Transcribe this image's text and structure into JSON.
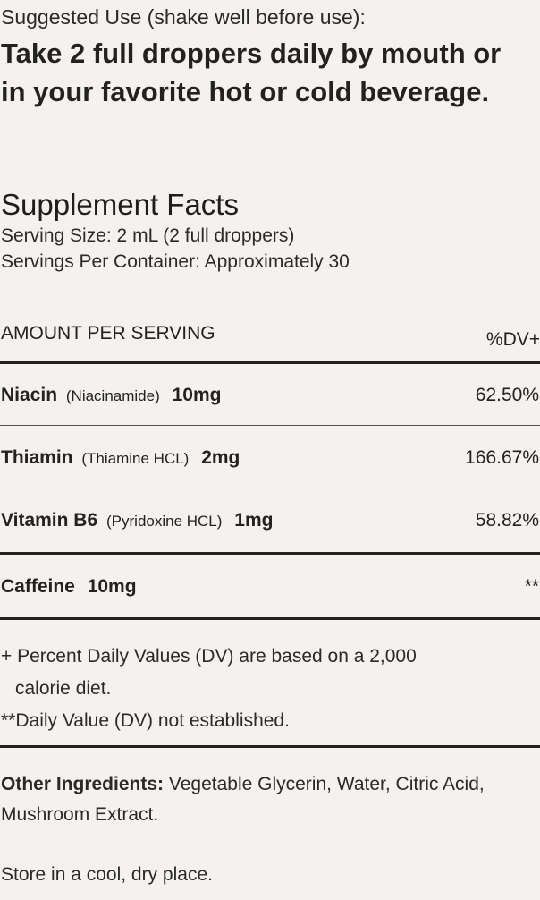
{
  "suggested_use": {
    "label": "Suggested Use (shake well before use):",
    "instruction": "Take 2 full droppers daily by mouth or in your favorite hot or cold beverage."
  },
  "supplement_facts": {
    "title": "Supplement Facts",
    "serving_size": "Serving Size: 2 mL (2 full droppers)",
    "servings_per_container": "Servings Per Container: Approximately 30",
    "header_left": "AMOUNT PER SERVING",
    "header_right": "%DV+",
    "rows": [
      {
        "name": "Niacin",
        "source": "(Niacinamide)",
        "amount": "10mg",
        "dv": "62.50%"
      },
      {
        "name": "Thiamin",
        "source": "(Thiamine HCL)",
        "amount": "2mg",
        "dv": "166.67%"
      },
      {
        "name": "Vitamin B6",
        "source": "(Pyridoxine HCL)",
        "amount": "1mg",
        "dv": "58.82%"
      },
      {
        "name": "Caffeine",
        "source": "",
        "amount": "10mg",
        "dv": "**"
      }
    ],
    "footnote_dv_line1": "+ Percent Daily Values (DV) are based on a 2,000",
    "footnote_dv_line2": "calorie diet.",
    "footnote_not_established": "**Daily Value (DV) not established."
  },
  "other_ingredients": {
    "label": "Other Ingredients:",
    "text": " Vegetable Glycerin, Water, Citric Acid, Mushroom Extract."
  },
  "storage": "Store in a cool, dry place."
}
